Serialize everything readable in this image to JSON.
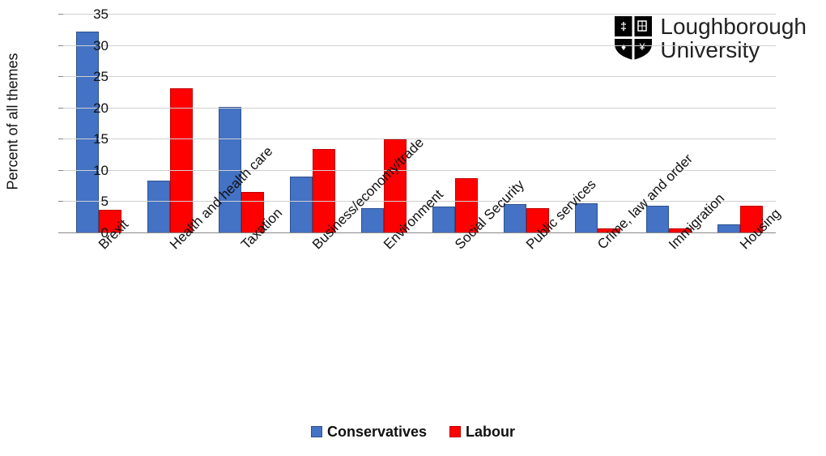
{
  "chart": {
    "type": "bar",
    "ylabel": "Percent of all themes",
    "ylim": [
      0,
      35
    ],
    "ytick_step": 5,
    "yticks": [
      0,
      5,
      10,
      15,
      20,
      25,
      30,
      35
    ],
    "grid_color": "#d0d0d0",
    "axis_line_color": "#888888",
    "background_color": "#ffffff",
    "label_fontsize": 18,
    "tick_fontsize": 17,
    "xlabel_rotation_deg": -45,
    "bar_border_width": 1,
    "categories": [
      "Brexit",
      "Health and health care",
      "Taxation",
      "Business/economy/trade",
      "Environment",
      "Social Security",
      "Public services",
      "Crime, law and order",
      "Immigration",
      "Housing"
    ],
    "series": [
      {
        "name": "Conservatives",
        "color": "#4472c4",
        "border_color": "#2f528f",
        "values": [
          32.0,
          8.2,
          20.0,
          8.8,
          3.8,
          4.0,
          4.4,
          4.6,
          4.2,
          1.2
        ]
      },
      {
        "name": "Labour",
        "color": "#ff0000",
        "border_color": "#c00000",
        "values": [
          3.5,
          23.0,
          6.3,
          13.2,
          14.8,
          8.6,
          3.8,
          0.5,
          0.5,
          4.2
        ]
      }
    ]
  },
  "logo": {
    "line1": "Loughborough",
    "line2": "University",
    "shield_bg": "#000000",
    "shield_fg": "#ffffff"
  }
}
